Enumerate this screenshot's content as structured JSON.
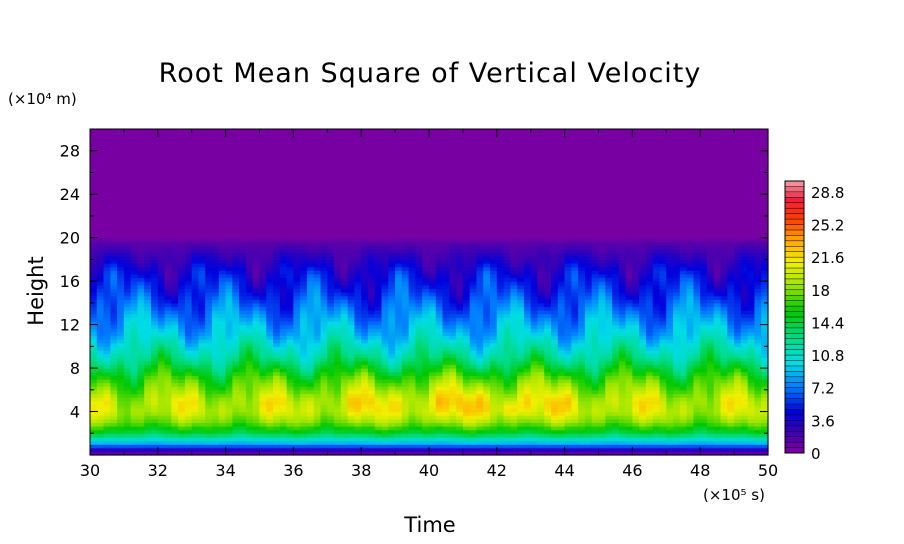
{
  "chart_data": {
    "type": "heatmap",
    "title": "Root Mean Square of Vertical Velocity",
    "xlabel": "Time",
    "ylabel": "Height",
    "x_unit": "(×10⁵ s)",
    "y_unit": "(×10⁴ m)",
    "xlim": [
      30,
      50
    ],
    "ylim": [
      0,
      30
    ],
    "x_ticks": [
      30,
      32,
      34,
      36,
      38,
      40,
      42,
      44,
      46,
      48,
      50
    ],
    "y_ticks": [
      4,
      8,
      12,
      16,
      20,
      24,
      28
    ],
    "colorbar": {
      "range": [
        0,
        30
      ],
      "tick_labels": [
        "0",
        "3.6",
        "7.2",
        "10.8",
        "14.4",
        "18",
        "21.6",
        "25.2",
        "28.8"
      ],
      "tick_values": [
        0,
        3.6,
        7.2,
        10.8,
        14.4,
        18,
        21.6,
        25.2,
        28.8
      ],
      "colormap": "rainbow (purple-blue-cyan-green-yellow-orange-red-pink)"
    },
    "profile": {
      "height": [
        0,
        0.5,
        1,
        2,
        3,
        4,
        5,
        6,
        7,
        8,
        9,
        10,
        11,
        12,
        13,
        14,
        15,
        16,
        17,
        18,
        19,
        19.7,
        20,
        30
      ],
      "value": [
        0.5,
        3,
        8,
        14,
        17.5,
        19.5,
        19.5,
        18,
        16.5,
        14.5,
        12.5,
        11,
        9.5,
        8.5,
        7.5,
        6.5,
        5.5,
        4.8,
        4,
        3,
        2,
        1.2,
        0.3,
        0.3
      ]
    },
    "peak": {
      "time": 42.4,
      "height": 4.3,
      "value": 21
    }
  }
}
